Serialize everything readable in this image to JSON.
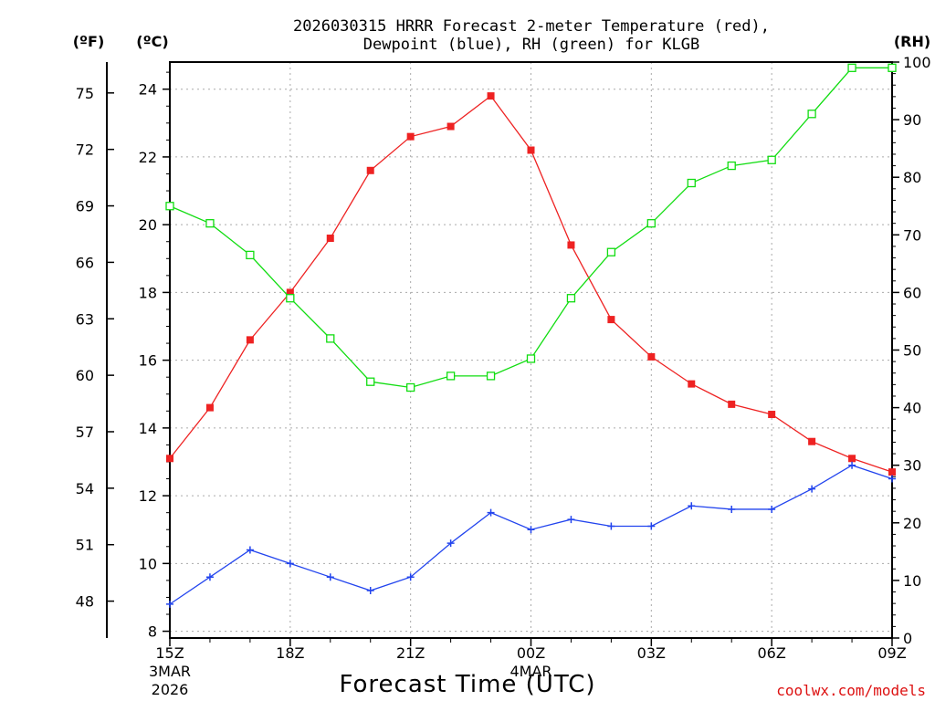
{
  "colors": {
    "temperature": "#ee2222",
    "dewpoint": "#2244ee",
    "rh": "#11dd11",
    "credit": "#dd1111"
  },
  "chart_data": {
    "type": "line",
    "title": "2026030315 HRRR Forecast 2-meter Temperature (red),",
    "subtitle": "Dewpoint (blue), RH (green) for KLGB",
    "xlabel": "Forecast Time (UTC)",
    "credit": "coolwx.com/models",
    "units": {
      "fahrenheit": "(ºF)",
      "celsius": "(ºC)",
      "rh": "(RH)"
    },
    "x": [
      0,
      1,
      2,
      3,
      4,
      5,
      6,
      7,
      8,
      9,
      10,
      11,
      12,
      13,
      14,
      15,
      16,
      17,
      18
    ],
    "x_ticks": [
      {
        "x": 0,
        "label": "15Z",
        "sub1": "3MAR",
        "sub2": "2026"
      },
      {
        "x": 3,
        "label": "18Z"
      },
      {
        "x": 6,
        "label": "21Z"
      },
      {
        "x": 9,
        "label": "00Z",
        "sub1": "4MAR"
      },
      {
        "x": 12,
        "label": "03Z"
      },
      {
        "x": 15,
        "label": "06Z"
      },
      {
        "x": 18,
        "label": "09Z"
      }
    ],
    "xlim": [
      0,
      18
    ],
    "ylim_c": [
      7.8,
      24.8
    ],
    "ylim_rh": [
      0,
      100
    ],
    "y_ticks_c": [
      8,
      10,
      12,
      14,
      16,
      18,
      20,
      22,
      24
    ],
    "y_ticks_f": [
      48,
      51,
      54,
      57,
      60,
      63,
      66,
      69,
      72,
      75
    ],
    "y_ticks_rh": [
      0,
      10,
      20,
      30,
      40,
      50,
      60,
      70,
      80,
      90,
      100
    ],
    "grid": true,
    "series": [
      {
        "name": "Temperature",
        "axis": "celsius",
        "marker": "filled-square",
        "color_key": "temperature",
        "values": [
          13.1,
          14.6,
          16.6,
          18.0,
          19.6,
          21.6,
          22.6,
          22.9,
          23.8,
          22.2,
          19.4,
          17.2,
          16.1,
          15.3,
          14.7,
          14.4,
          13.6,
          13.1,
          12.7
        ]
      },
      {
        "name": "Dewpoint",
        "axis": "celsius",
        "marker": "plus",
        "color_key": "dewpoint",
        "values": [
          8.8,
          9.6,
          10.4,
          10.0,
          9.6,
          9.2,
          9.6,
          10.6,
          11.5,
          11.0,
          11.3,
          11.1,
          11.1,
          11.7,
          11.6,
          11.6,
          12.2,
          12.9,
          12.5
        ]
      },
      {
        "name": "RH",
        "axis": "rh",
        "marker": "open-square",
        "color_key": "rh",
        "values": [
          75,
          72,
          66.5,
          59,
          52,
          44.5,
          43.5,
          45.5,
          45.5,
          48.5,
          59,
          67,
          72,
          79,
          82,
          83,
          91,
          99,
          99
        ]
      }
    ]
  }
}
